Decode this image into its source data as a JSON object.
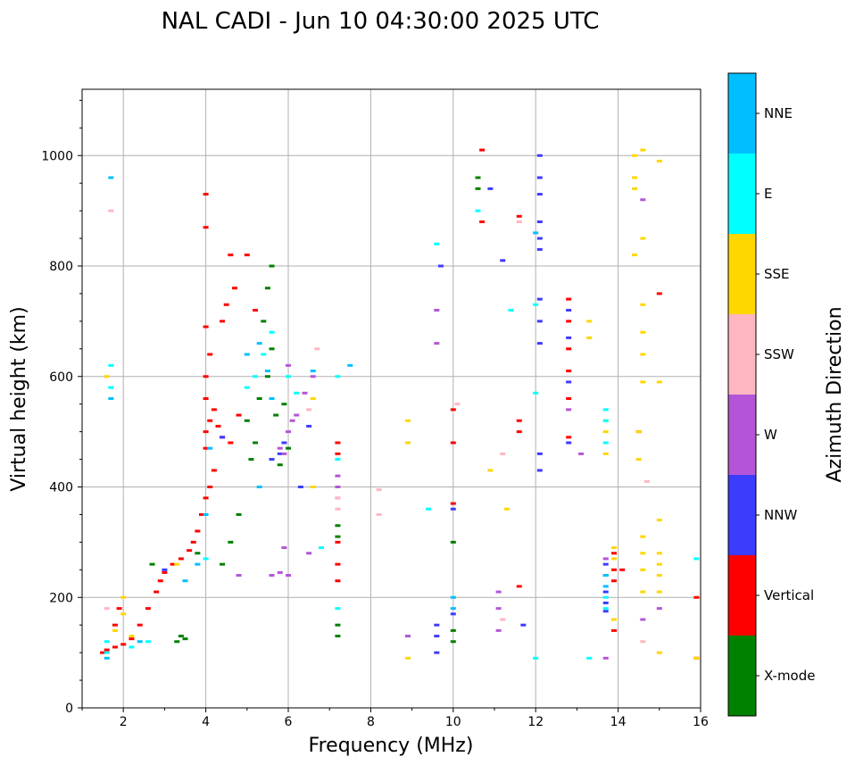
{
  "chart_data": {
    "type": "scatter",
    "title": "NAL CADI - Jun 10 04:30:00 2025 UTC",
    "xlabel": "Frequency (MHz)",
    "ylabel": "Virtual height (km)",
    "xlim": [
      1,
      16
    ],
    "ylim": [
      0,
      1120
    ],
    "xticks": [
      2,
      4,
      6,
      8,
      10,
      12,
      14,
      16
    ],
    "yticks": [
      0,
      200,
      400,
      600,
      800,
      1000
    ],
    "grid": true,
    "colorbar": {
      "title": "Azimuth Direction",
      "categories": [
        "X-mode",
        "Vertical",
        "NNW",
        "W",
        "SSW",
        "SSE",
        "E",
        "NNE"
      ],
      "colors": [
        "#008000",
        "#ff0000",
        "#3c3cff",
        "#b455d7",
        "#ffb6c1",
        "#ffd700",
        "#00ffff",
        "#00bfff"
      ]
    },
    "series": [
      {
        "name": "X-mode",
        "points": [
          [
            3.4,
            130
          ],
          [
            3.5,
            125
          ],
          [
            3.3,
            120
          ],
          [
            2.7,
            260
          ],
          [
            3.8,
            280
          ],
          [
            4.4,
            260
          ],
          [
            4.6,
            300
          ],
          [
            4.8,
            350
          ],
          [
            5.0,
            520
          ],
          [
            5.2,
            480
          ],
          [
            5.3,
            560
          ],
          [
            5.5,
            600
          ],
          [
            5.6,
            650
          ],
          [
            5.4,
            700
          ],
          [
            5.7,
            530
          ],
          [
            5.9,
            550
          ],
          [
            6.0,
            470
          ],
          [
            5.8,
            440
          ],
          [
            5.1,
            450
          ],
          [
            7.2,
            150
          ],
          [
            7.2,
            130
          ],
          [
            7.2,
            310
          ],
          [
            7.2,
            330
          ],
          [
            10.0,
            300
          ],
          [
            10.0,
            140
          ],
          [
            10.0,
            120
          ],
          [
            10.6,
            940
          ],
          [
            10.6,
            960
          ],
          [
            5.5,
            760
          ],
          [
            5.6,
            800
          ]
        ]
      },
      {
        "name": "Vertical",
        "points": [
          [
            1.5,
            100
          ],
          [
            1.6,
            105
          ],
          [
            1.8,
            110
          ],
          [
            2.0,
            115
          ],
          [
            2.2,
            125
          ],
          [
            2.4,
            150
          ],
          [
            2.6,
            180
          ],
          [
            2.8,
            210
          ],
          [
            2.9,
            230
          ],
          [
            3.0,
            245
          ],
          [
            3.2,
            260
          ],
          [
            3.4,
            270
          ],
          [
            3.6,
            285
          ],
          [
            3.7,
            300
          ],
          [
            3.8,
            320
          ],
          [
            3.9,
            350
          ],
          [
            4.0,
            380
          ],
          [
            4.1,
            400
          ],
          [
            4.2,
            430
          ],
          [
            4.0,
            470
          ],
          [
            4.0,
            500
          ],
          [
            4.1,
            520
          ],
          [
            4.2,
            540
          ],
          [
            4.0,
            560
          ],
          [
            4.3,
            510
          ],
          [
            4.4,
            490
          ],
          [
            4.6,
            480
          ],
          [
            4.8,
            530
          ],
          [
            4.0,
            600
          ],
          [
            4.1,
            640
          ],
          [
            4.0,
            690
          ],
          [
            4.4,
            700
          ],
          [
            4.5,
            730
          ],
          [
            4.7,
            760
          ],
          [
            4.6,
            820
          ],
          [
            4.0,
            930
          ],
          [
            4.0,
            870
          ],
          [
            5.0,
            820
          ],
          [
            5.2,
            720
          ],
          [
            1.8,
            150
          ],
          [
            1.9,
            180
          ],
          [
            7.2,
            480
          ],
          [
            7.2,
            460
          ],
          [
            7.2,
            300
          ],
          [
            7.2,
            260
          ],
          [
            7.2,
            230
          ],
          [
            10.0,
            480
          ],
          [
            10.0,
            540
          ],
          [
            10.0,
            370
          ],
          [
            10.7,
            880
          ],
          [
            10.7,
            1010
          ],
          [
            11.6,
            500
          ],
          [
            11.6,
            520
          ],
          [
            11.6,
            890
          ],
          [
            12.8,
            740
          ],
          [
            12.8,
            700
          ],
          [
            12.8,
            650
          ],
          [
            12.8,
            610
          ],
          [
            12.8,
            560
          ],
          [
            12.8,
            490
          ],
          [
            13.9,
            280
          ],
          [
            13.9,
            250
          ],
          [
            13.9,
            230
          ],
          [
            13.9,
            140
          ],
          [
            14.1,
            250
          ],
          [
            14.5,
            500
          ],
          [
            15.0,
            750
          ],
          [
            15.9,
            200
          ],
          [
            15.9,
            90
          ],
          [
            11.6,
            220
          ]
        ]
      },
      {
        "name": "NNW",
        "points": [
          [
            12.1,
            1000
          ],
          [
            12.1,
            960
          ],
          [
            12.1,
            930
          ],
          [
            12.1,
            880
          ],
          [
            12.1,
            850
          ],
          [
            12.1,
            830
          ],
          [
            12.1,
            740
          ],
          [
            12.1,
            700
          ],
          [
            12.1,
            660
          ],
          [
            12.1,
            460
          ],
          [
            12.1,
            430
          ],
          [
            12.8,
            720
          ],
          [
            12.8,
            670
          ],
          [
            12.8,
            590
          ],
          [
            12.8,
            480
          ],
          [
            13.7,
            260
          ],
          [
            13.7,
            240
          ],
          [
            13.7,
            210
          ],
          [
            13.7,
            190
          ],
          [
            13.7,
            175
          ],
          [
            9.6,
            150
          ],
          [
            9.6,
            130
          ],
          [
            9.6,
            100
          ],
          [
            10.0,
            170
          ],
          [
            10.0,
            360
          ],
          [
            10.9,
            940
          ],
          [
            11.2,
            810
          ],
          [
            11.7,
            150
          ],
          [
            9.7,
            800
          ],
          [
            6.5,
            510
          ],
          [
            6.3,
            400
          ],
          [
            5.9,
            480
          ],
          [
            5.8,
            460
          ],
          [
            5.6,
            450
          ],
          [
            4.4,
            490
          ],
          [
            3.0,
            250
          ]
        ]
      },
      {
        "name": "W",
        "points": [
          [
            5.9,
            460
          ],
          [
            5.8,
            470
          ],
          [
            6.0,
            500
          ],
          [
            6.1,
            520
          ],
          [
            6.2,
            530
          ],
          [
            6.4,
            570
          ],
          [
            6.6,
            600
          ],
          [
            5.6,
            240
          ],
          [
            5.8,
            245
          ],
          [
            6.0,
            240
          ],
          [
            4.8,
            240
          ],
          [
            5.9,
            290
          ],
          [
            6.5,
            280
          ],
          [
            6.0,
            620
          ],
          [
            7.2,
            420
          ],
          [
            7.2,
            400
          ],
          [
            7.2,
            380
          ],
          [
            8.9,
            130
          ],
          [
            11.1,
            210
          ],
          [
            11.1,
            180
          ],
          [
            11.1,
            140
          ],
          [
            13.1,
            460
          ],
          [
            12.8,
            540
          ],
          [
            14.6,
            160
          ],
          [
            14.6,
            920
          ],
          [
            15.0,
            180
          ],
          [
            9.6,
            720
          ],
          [
            9.6,
            660
          ],
          [
            13.7,
            270
          ],
          [
            13.7,
            90
          ]
        ]
      },
      {
        "name": "SSW",
        "points": [
          [
            6.5,
            540
          ],
          [
            6.7,
            650
          ],
          [
            7.2,
            360
          ],
          [
            7.2,
            380
          ],
          [
            8.2,
            395
          ],
          [
            8.2,
            350
          ],
          [
            11.2,
            460
          ],
          [
            11.6,
            880
          ],
          [
            14.6,
            120
          ],
          [
            14.7,
            410
          ],
          [
            1.6,
            180
          ],
          [
            10.1,
            550
          ],
          [
            11.2,
            160
          ],
          [
            1.7,
            900
          ]
        ]
      },
      {
        "name": "SSE",
        "points": [
          [
            1.8,
            140
          ],
          [
            2.0,
            170
          ],
          [
            2.0,
            200
          ],
          [
            2.2,
            130
          ],
          [
            3.3,
            260
          ],
          [
            8.9,
            520
          ],
          [
            8.9,
            480
          ],
          [
            8.9,
            90
          ],
          [
            6.6,
            400
          ],
          [
            6.6,
            560
          ],
          [
            10.9,
            430
          ],
          [
            11.3,
            360
          ],
          [
            13.3,
            700
          ],
          [
            13.3,
            670
          ],
          [
            13.7,
            520
          ],
          [
            13.7,
            500
          ],
          [
            13.7,
            460
          ],
          [
            13.9,
            290
          ],
          [
            13.9,
            270
          ],
          [
            13.9,
            160
          ],
          [
            14.4,
            1000
          ],
          [
            14.4,
            960
          ],
          [
            14.4,
            940
          ],
          [
            14.4,
            820
          ],
          [
            14.5,
            500
          ],
          [
            14.5,
            450
          ],
          [
            14.6,
            1010
          ],
          [
            14.6,
            850
          ],
          [
            14.6,
            730
          ],
          [
            14.6,
            680
          ],
          [
            14.6,
            640
          ],
          [
            14.6,
            590
          ],
          [
            14.6,
            310
          ],
          [
            14.6,
            280
          ],
          [
            14.6,
            250
          ],
          [
            14.6,
            210
          ],
          [
            15.0,
            990
          ],
          [
            15.0,
            590
          ],
          [
            15.0,
            340
          ],
          [
            15.0,
            280
          ],
          [
            15.0,
            260
          ],
          [
            15.0,
            240
          ],
          [
            15.0,
            210
          ],
          [
            15.0,
            100
          ],
          [
            15.9,
            90
          ],
          [
            1.6,
            600
          ]
        ]
      },
      {
        "name": "E",
        "points": [
          [
            1.6,
            120
          ],
          [
            1.6,
            100
          ],
          [
            1.7,
            580
          ],
          [
            1.7,
            620
          ],
          [
            2.2,
            110
          ],
          [
            2.6,
            120
          ],
          [
            4.0,
            270
          ],
          [
            5.2,
            600
          ],
          [
            5.4,
            640
          ],
          [
            5.0,
            580
          ],
          [
            5.6,
            680
          ],
          [
            6.0,
            600
          ],
          [
            6.2,
            570
          ],
          [
            6.8,
            290
          ],
          [
            7.2,
            600
          ],
          [
            7.2,
            450
          ],
          [
            7.2,
            180
          ],
          [
            9.4,
            360
          ],
          [
            11.4,
            720
          ],
          [
            12.0,
            730
          ],
          [
            12.0,
            570
          ],
          [
            12.0,
            90
          ],
          [
            13.3,
            90
          ],
          [
            13.7,
            540
          ],
          [
            13.7,
            520
          ],
          [
            13.7,
            480
          ],
          [
            13.7,
            200
          ],
          [
            13.7,
            180
          ],
          [
            15.9,
            270
          ],
          [
            10.6,
            900
          ],
          [
            9.6,
            840
          ]
        ]
      },
      {
        "name": "NNE",
        "points": [
          [
            1.7,
            960
          ],
          [
            1.6,
            90
          ],
          [
            2.4,
            120
          ],
          [
            3.5,
            230
          ],
          [
            3.8,
            260
          ],
          [
            4.0,
            350
          ],
          [
            4.1,
            470
          ],
          [
            5.3,
            400
          ],
          [
            5.6,
            560
          ],
          [
            5.0,
            640
          ],
          [
            5.3,
            660
          ],
          [
            5.5,
            610
          ],
          [
            6.6,
            610
          ],
          [
            7.5,
            620
          ],
          [
            10.0,
            180
          ],
          [
            10.0,
            200
          ],
          [
            12.0,
            860
          ],
          [
            13.7,
            240
          ],
          [
            13.7,
            220
          ],
          [
            1.7,
            560
          ]
        ]
      }
    ]
  }
}
